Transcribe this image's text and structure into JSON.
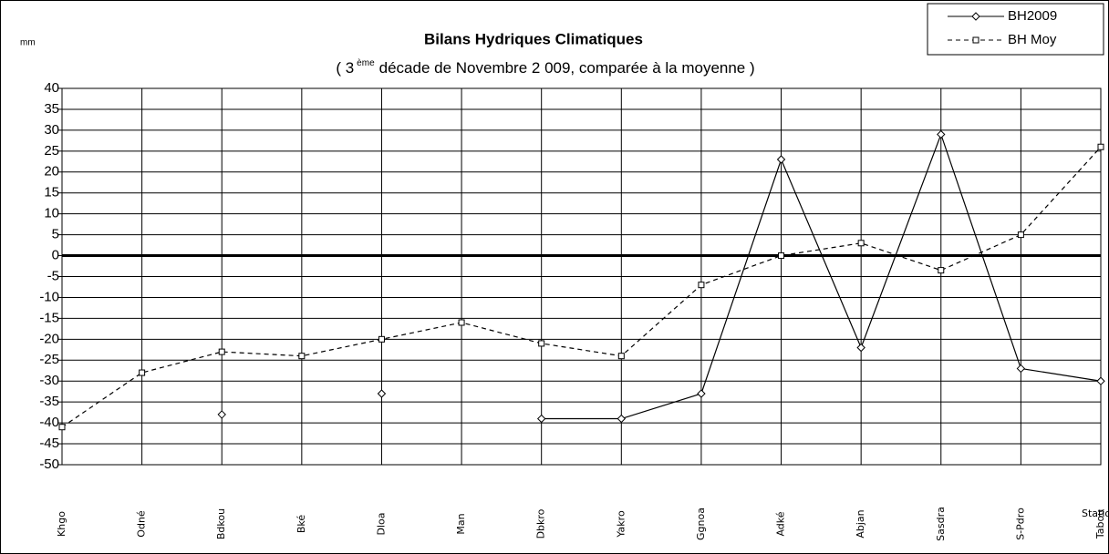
{
  "chart_data": {
    "type": "line",
    "title": "Bilans Hydriques Climatiques",
    "subtitle": [
      "( 3",
      "ème",
      "décade de Novembre  2 009, comparée à la moyenne )"
    ],
    "y_label": "mm",
    "x_label": "Stations",
    "categories": [
      "Khgo",
      "Odné",
      "Bdkou",
      "Bké",
      "Dloa",
      "Man",
      "Dbkro",
      "Yakro",
      "Ggnoa",
      "Adké",
      "Abjan",
      "Sasdra",
      "S-Pdro",
      "Tabou"
    ],
    "series": [
      {
        "name": "BH2009",
        "color": "#000000",
        "dash": "none",
        "marker": "diamond",
        "values": [
          null,
          null,
          -38,
          null,
          -33,
          null,
          -39,
          -39,
          -33,
          23,
          -22,
          29,
          -27,
          -30
        ]
      },
      {
        "name": "BH Moy",
        "color": "#000000",
        "dash": "5,4",
        "marker": "square",
        "values": [
          -41,
          -28,
          -23,
          -24,
          -20,
          -16,
          -21,
          -24,
          -7,
          0,
          3,
          -3.5,
          5,
          26
        ]
      }
    ],
    "ylim": [
      -50,
      40
    ],
    "yticks": [
      -50,
      -45,
      -40,
      -35,
      -30,
      -25,
      -20,
      -15,
      -10,
      -5,
      0,
      5,
      10,
      15,
      20,
      25,
      30,
      35,
      40
    ],
    "grid": true,
    "legend": "top-right"
  }
}
